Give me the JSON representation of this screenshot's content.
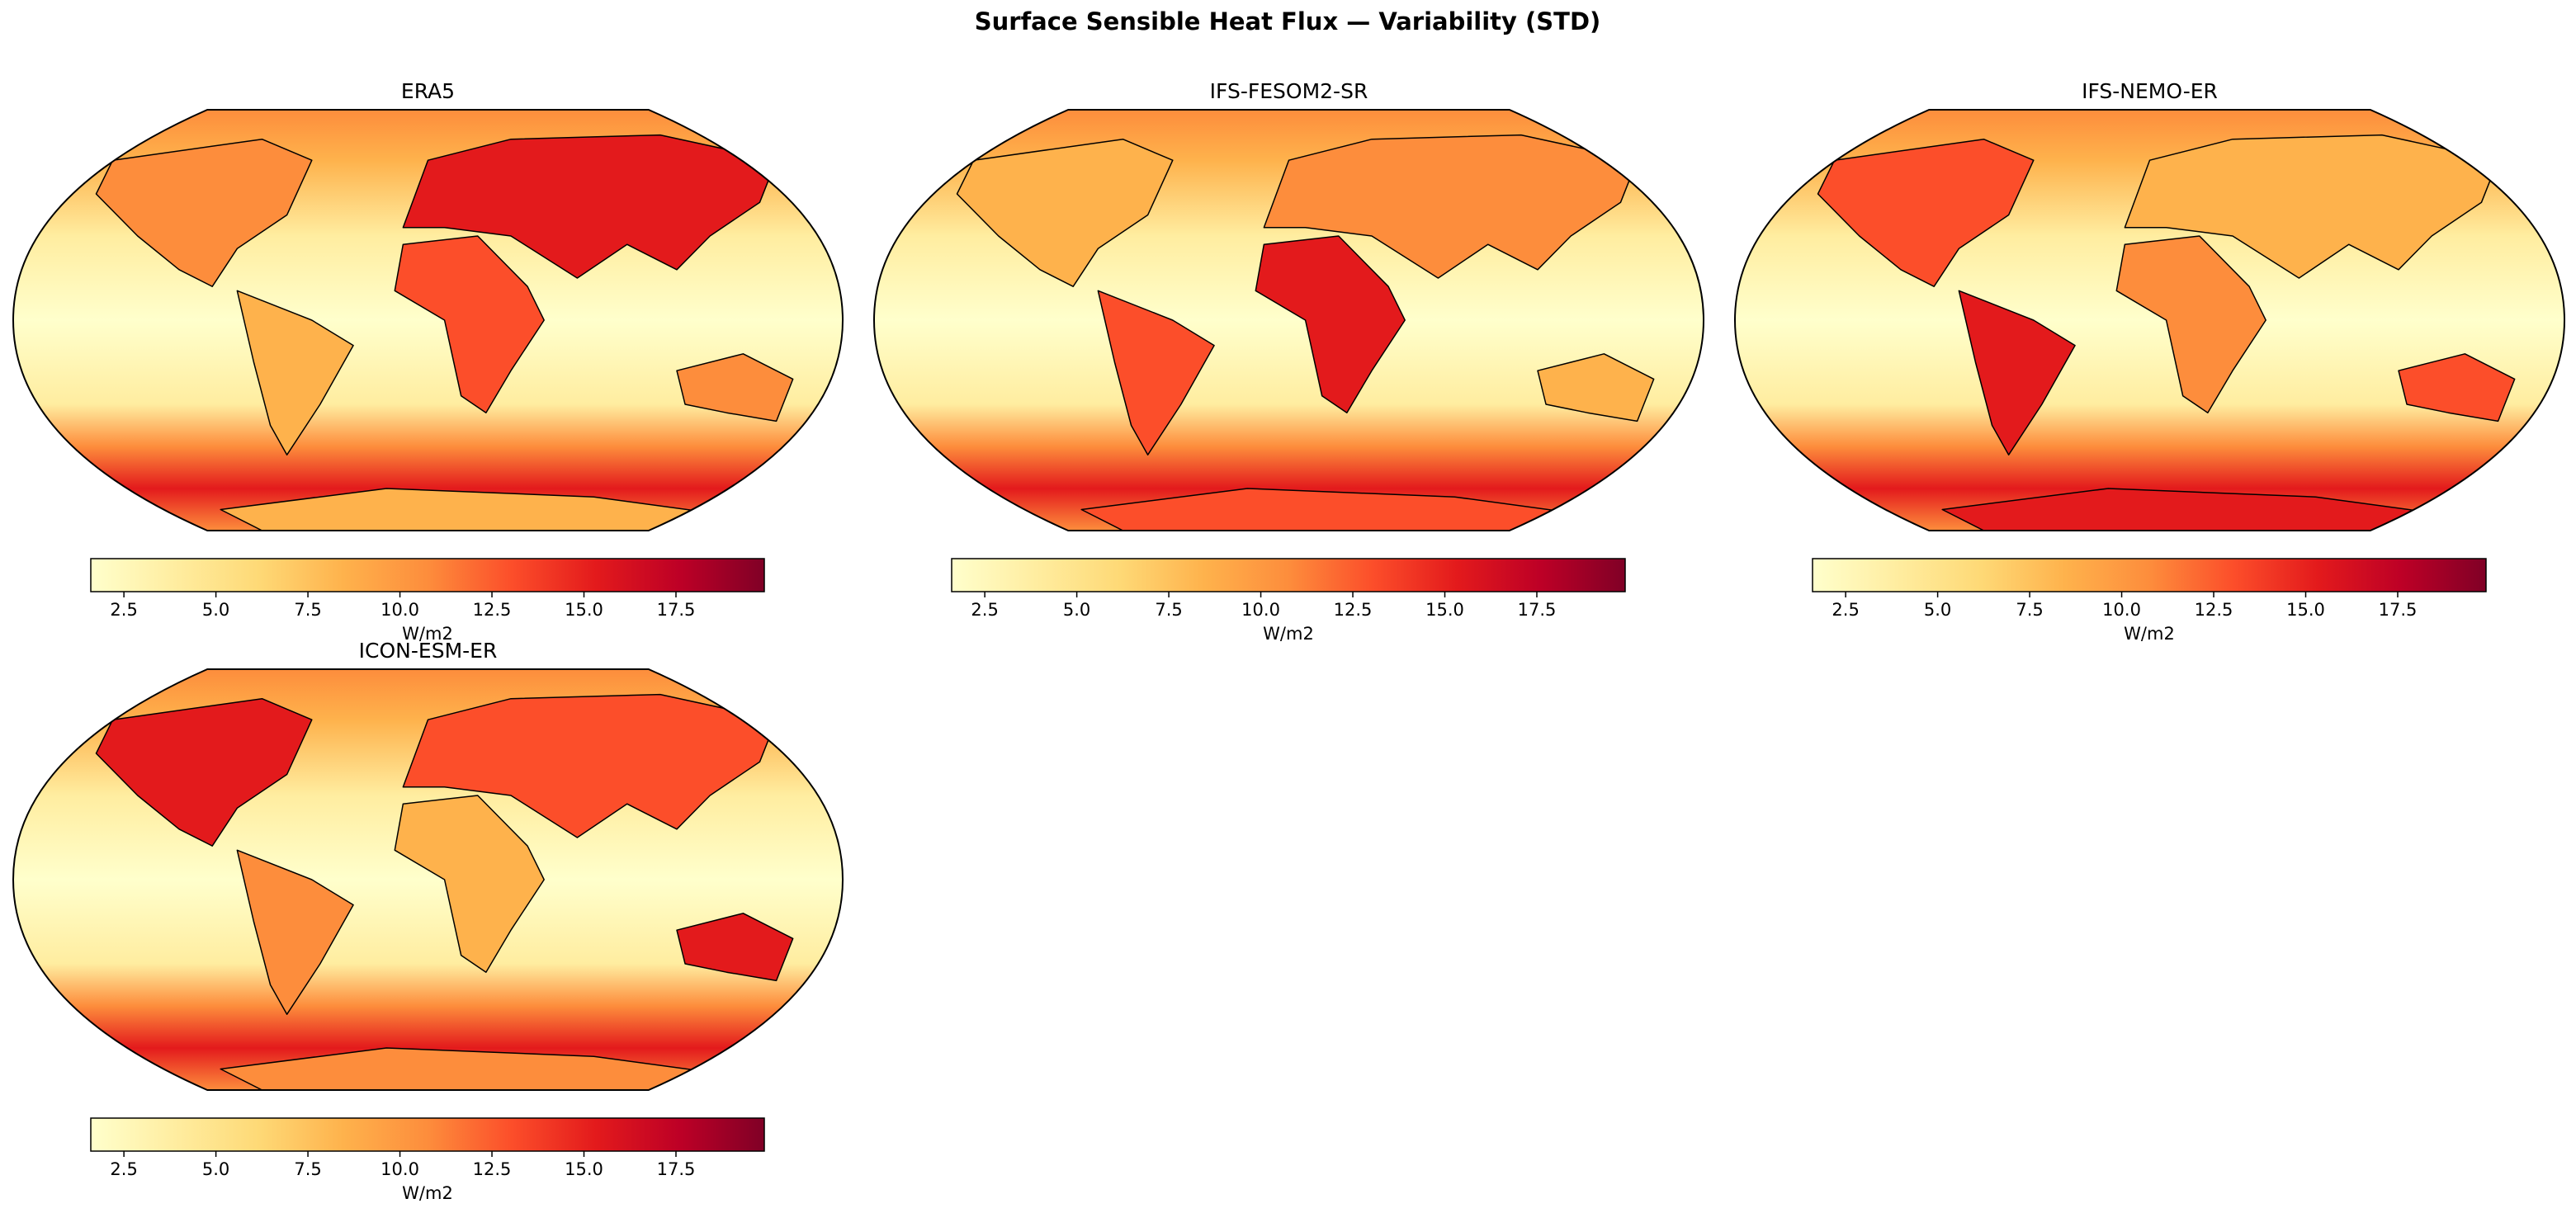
{
  "title": "Surface Sensible Heat Flux — Variability (STD)",
  "maps": [
    {
      "title": "ERA5",
      "colorbar": {
        "label": "W/m2",
        "colors": [
          "#ffffcc",
          "#ffeda0",
          "#fed976",
          "#feb24c",
          "#fd8d3c",
          "#fc4e2a",
          "#e31a1c",
          "#bd0026",
          "#800026"
        ],
        "lim": [
          1.6,
          19.9
        ],
        "ticks": [
          2.5,
          {
            "value": 5,
            "label": "5.0"
          },
          7.5,
          {
            "value": 10,
            "label": "10.0"
          },
          12.5,
          {
            "value": 15,
            "label": "15.0"
          },
          17.5
        ]
      }
    },
    {
      "title": "IFS-FESOM2-SR",
      "colorbar": {
        "label": "W/m2",
        "colors": [
          "#ffffcc",
          "#ffeda0",
          "#fed976",
          "#feb24c",
          "#fd8d3c",
          "#fc4e2a",
          "#e31a1c",
          "#bd0026",
          "#800026"
        ],
        "lim": [
          1.6,
          19.9
        ],
        "ticks": [
          2.5,
          {
            "value": 5,
            "label": "5.0"
          },
          7.5,
          {
            "value": 10,
            "label": "10.0"
          },
          12.5,
          {
            "value": 15,
            "label": "15.0"
          },
          17.5
        ]
      }
    },
    {
      "title": "IFS-NEMO-ER",
      "colorbar": {
        "label": "W/m2",
        "colors": [
          "#ffffcc",
          "#ffeda0",
          "#fed976",
          "#feb24c",
          "#fd8d3c",
          "#fc4e2a",
          "#e31a1c",
          "#bd0026",
          "#800026"
        ],
        "lim": [
          1.6,
          19.9
        ],
        "ticks": [
          2.5,
          {
            "value": 5,
            "label": "5.0"
          },
          7.5,
          {
            "value": 10,
            "label": "10.0"
          },
          12.5,
          {
            "value": 15,
            "label": "15.0"
          },
          17.5
        ]
      }
    },
    {
      "title": "ICON-ESM-ER",
      "colorbar": {
        "label": "W/m2",
        "colors": [
          "#ffffcc",
          "#ffeda0",
          "#fed976",
          "#feb24c",
          "#fd8d3c",
          "#fc4e2a",
          "#e31a1c",
          "#bd0026",
          "#800026"
        ],
        "lim": [
          1.6,
          19.9
        ],
        "ticks": [
          2.5,
          {
            "value": 5,
            "label": "5.0"
          },
          7.5,
          {
            "value": 10,
            "label": "10.0"
          },
          12.5,
          {
            "value": 15,
            "label": "15.0"
          },
          17.5
        ]
      }
    }
  ]
}
